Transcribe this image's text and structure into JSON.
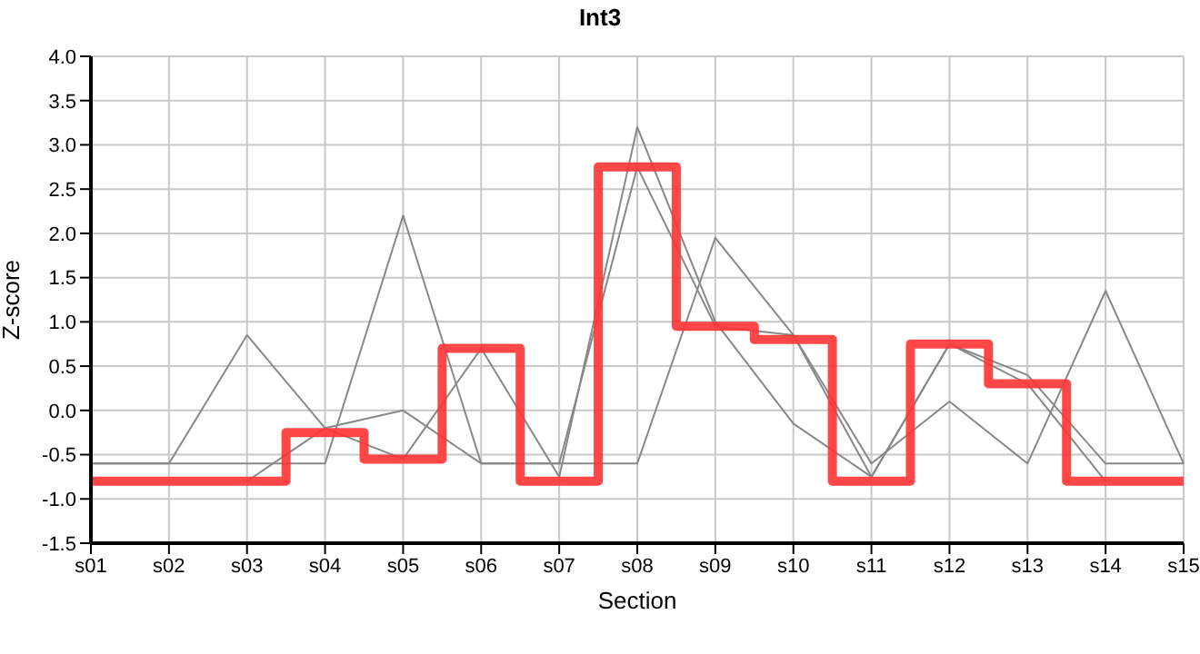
{
  "chart_data": {
    "type": "line",
    "title": "Int3",
    "xlabel": "Section",
    "ylabel": "Z-score",
    "categories": [
      "s01",
      "s02",
      "s03",
      "s04",
      "s05",
      "s06",
      "s07",
      "s08",
      "s09",
      "s10",
      "s11",
      "s12",
      "s13",
      "s14",
      "s15"
    ],
    "series": [
      {
        "color": "#888888",
        "values": [
          -0.6,
          -0.6,
          0.85,
          -0.2,
          -0.55,
          0.7,
          -0.75,
          3.2,
          1.0,
          -0.15,
          -0.75,
          0.75,
          0.3,
          -0.8,
          null
        ]
      },
      {
        "color": "#888888",
        "values": [
          null,
          null,
          -0.8,
          -0.2,
          0.0,
          -0.6,
          -0.6,
          2.75,
          0.95,
          0.85,
          -0.6,
          0.1,
          -0.6,
          1.35,
          -0.6
        ]
      },
      {
        "color": "#888888",
        "values": [
          -0.6,
          -0.6,
          -0.6,
          -0.6,
          2.2,
          -0.6,
          -0.6,
          -0.6,
          1.95,
          0.85,
          -0.75,
          0.75,
          0.4,
          -0.6,
          -0.6
        ]
      },
      {
        "type": "step",
        "color": "#ff3333",
        "values": [
          -0.8,
          -0.8,
          -0.8,
          -0.25,
          -0.55,
          0.7,
          -0.8,
          2.75,
          0.95,
          0.8,
          -0.8,
          0.75,
          0.3,
          -0.8,
          -0.8
        ]
      }
    ],
    "ylim": [
      -1.5,
      4.0
    ],
    "yticks": [
      {
        "value": -1.5,
        "label": "-1.5"
      },
      {
        "value": -1,
        "label": "-1.0"
      },
      {
        "value": -0.5,
        "label": "-0.5"
      },
      {
        "value": 0,
        "label": "0.0"
      },
      {
        "value": 0.5,
        "label": "0.5"
      },
      {
        "value": 1,
        "label": "1.0"
      },
      {
        "value": 1.5,
        "label": "1.5"
      },
      {
        "value": 2,
        "label": "2.0"
      },
      {
        "value": 2.5,
        "label": "2.5"
      },
      {
        "value": 3,
        "label": "3.0"
      },
      {
        "value": 3.5,
        "label": "3.5"
      },
      {
        "value": 4,
        "label": "4.0"
      }
    ],
    "grid": true,
    "legend": false,
    "marker": "none"
  }
}
